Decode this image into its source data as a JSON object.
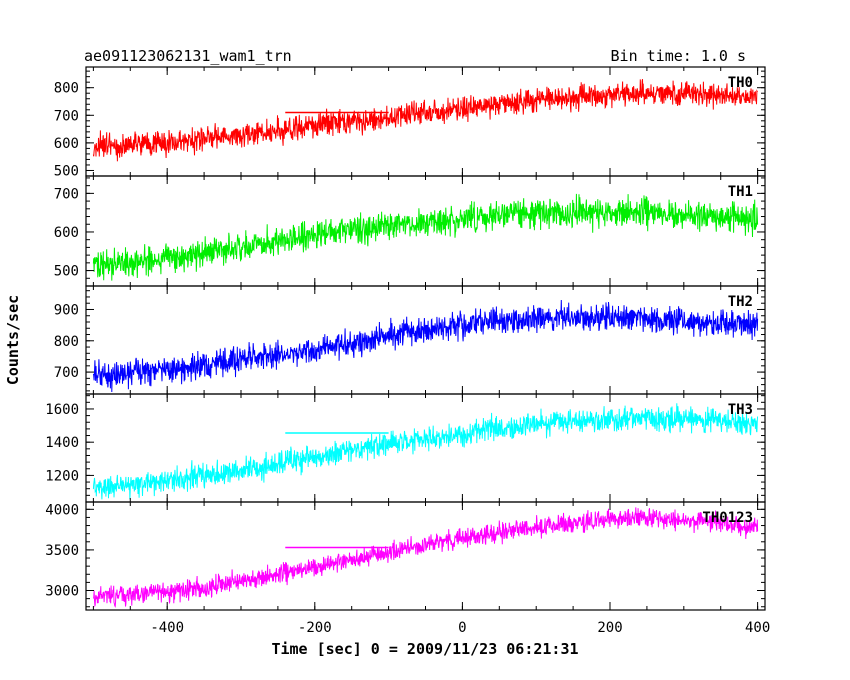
{
  "header": {
    "title": "ae091123062131_wam1_trn",
    "bin_time": "Bin time: 1.0 s"
  },
  "axes": {
    "xlabel": "Time [sec] 0 = 2009/11/23 06:21:31",
    "ylabel": "Counts/sec"
  },
  "chart_data": [
    {
      "type": "line",
      "name": "TH0",
      "color": "#ff0000",
      "xlim": [
        -510,
        410
      ],
      "ylim": [
        480,
        875
      ],
      "yticks": [
        500,
        600,
        700,
        800
      ],
      "xticks": [
        -400,
        -200,
        0,
        200,
        400
      ],
      "x": [
        -500,
        -450,
        -400,
        -350,
        -300,
        -250,
        -200,
        -150,
        -100,
        -50,
        0,
        50,
        100,
        150,
        200,
        250,
        300,
        350,
        400
      ],
      "values": [
        585,
        590,
        600,
        615,
        630,
        645,
        665,
        680,
        695,
        710,
        725,
        740,
        755,
        765,
        775,
        780,
        780,
        775,
        765
      ],
      "noise": 45,
      "avg_line": {
        "x": [
          -240,
          -100
        ],
        "y": 710
      }
    },
    {
      "type": "line",
      "name": "TH1",
      "color": "#00ee00",
      "xlim": [
        -510,
        410
      ],
      "ylim": [
        460,
        745
      ],
      "yticks": [
        500,
        600,
        700
      ],
      "xticks": [
        -400,
        -200,
        0,
        200,
        400
      ],
      "x": [
        -500,
        -450,
        -400,
        -350,
        -300,
        -250,
        -200,
        -150,
        -100,
        -50,
        0,
        50,
        100,
        150,
        200,
        250,
        300,
        350,
        400
      ],
      "values": [
        510,
        520,
        530,
        545,
        560,
        575,
        590,
        605,
        615,
        625,
        635,
        645,
        650,
        650,
        650,
        648,
        645,
        640,
        635
      ],
      "noise": 38
    },
    {
      "type": "line",
      "name": "TH2",
      "color": "#0000ff",
      "xlim": [
        -510,
        410
      ],
      "ylim": [
        630,
        975
      ],
      "yticks": [
        700,
        800,
        900
      ],
      "xticks": [
        -400,
        -200,
        0,
        200,
        400
      ],
      "x": [
        -500,
        -450,
        -400,
        -350,
        -300,
        -250,
        -200,
        -150,
        -100,
        -50,
        0,
        50,
        100,
        150,
        200,
        250,
        300,
        350,
        400
      ],
      "values": [
        690,
        700,
        710,
        720,
        740,
        755,
        770,
        790,
        815,
        835,
        855,
        865,
        870,
        875,
        875,
        870,
        865,
        855,
        845
      ],
      "noise": 45
    },
    {
      "type": "line",
      "name": "TH3",
      "color": "#00ffff",
      "xlim": [
        -510,
        410
      ],
      "ylim": [
        1040,
        1690
      ],
      "yticks": [
        1200,
        1400,
        1600
      ],
      "xticks": [
        -400,
        -200,
        0,
        200,
        400
      ],
      "x": [
        -500,
        -450,
        -400,
        -350,
        -300,
        -250,
        -200,
        -150,
        -100,
        -50,
        0,
        50,
        100,
        150,
        200,
        250,
        300,
        350,
        400
      ],
      "values": [
        1120,
        1140,
        1170,
        1200,
        1230,
        1270,
        1310,
        1350,
        1390,
        1420,
        1450,
        1480,
        1510,
        1530,
        1540,
        1545,
        1540,
        1530,
        1510
      ],
      "noise": 75,
      "avg_line": {
        "x": [
          -240,
          -100
        ],
        "y": 1455
      }
    },
    {
      "type": "line",
      "name": "TH0123",
      "color": "#ff00ff",
      "xlim": [
        -510,
        410
      ],
      "ylim": [
        2760,
        4090
      ],
      "yticks": [
        3000,
        3500,
        4000
      ],
      "xticks": [
        -400,
        -200,
        0,
        200,
        400
      ],
      "x": [
        -500,
        -450,
        -400,
        -350,
        -300,
        -250,
        -200,
        -150,
        -100,
        -50,
        0,
        50,
        100,
        150,
        200,
        250,
        300,
        350,
        400
      ],
      "values": [
        2930,
        2950,
        2990,
        3040,
        3110,
        3200,
        3290,
        3380,
        3470,
        3560,
        3640,
        3710,
        3780,
        3840,
        3880,
        3895,
        3880,
        3840,
        3770
      ],
      "noise": 120,
      "avg_line": {
        "x": [
          -240,
          -100
        ],
        "y": 3530
      }
    }
  ]
}
